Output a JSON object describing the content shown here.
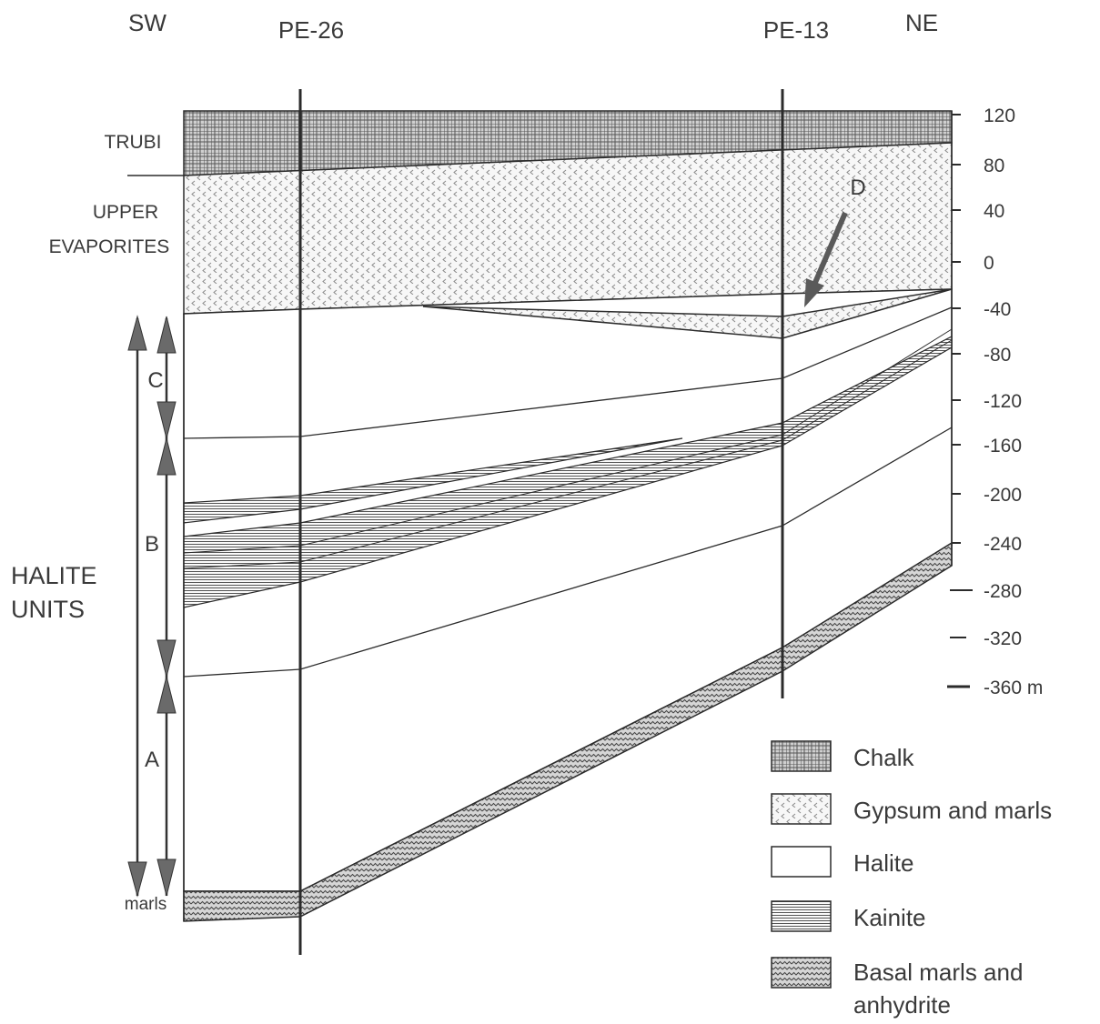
{
  "orientation": {
    "left": "SW",
    "right": "NE"
  },
  "wells": [
    {
      "name": "PE-26"
    },
    {
      "name": "PE-13"
    }
  ],
  "depth_scale": {
    "ticks": [
      "120",
      "80",
      "40",
      "0",
      "-40",
      "-80",
      "-120",
      "-160",
      "-200",
      "-240",
      "-280",
      "-320",
      "-360 m"
    ]
  },
  "formation_labels": {
    "trubi": "TRUBI",
    "upper_evaporites_line1": "UPPER",
    "upper_evaporites_line2": "EVAPORITES",
    "halite_units_line1": "HALITE",
    "halite_units_line2": "UNITS",
    "marls": "marls"
  },
  "unit_labels": {
    "c": "C",
    "b": "B",
    "a": "A",
    "d": "D"
  },
  "legend": [
    {
      "pattern": "chalk",
      "label": "Chalk"
    },
    {
      "pattern": "gypsum",
      "label": "Gypsum and marls"
    },
    {
      "pattern": "halite",
      "label": "Halite"
    },
    {
      "pattern": "kainite",
      "label": "Kainite"
    },
    {
      "pattern": "basal",
      "label": "Basal marls and",
      "label2": "anhydrite"
    }
  ],
  "colors": {
    "line": "#2b2b2b",
    "text": "#3a3a3a",
    "arrow": "#6a6a6a"
  }
}
